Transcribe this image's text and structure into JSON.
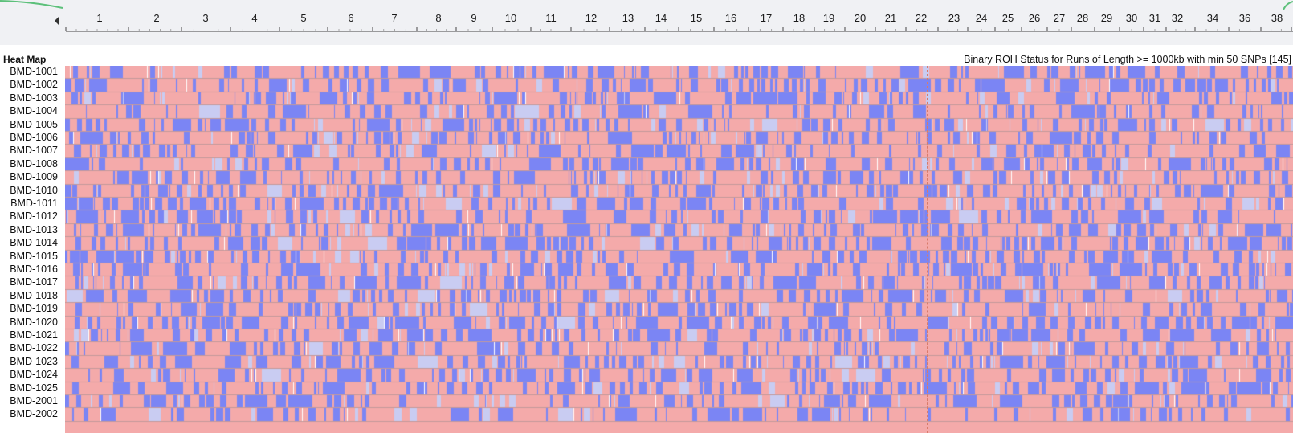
{
  "ruler": {
    "chromosomes": [
      "1",
      "2",
      "3",
      "4",
      "5",
      "6",
      "7",
      "8",
      "9",
      "10",
      "11",
      "12",
      "13",
      "14",
      "15",
      "16",
      "17",
      "18",
      "19",
      "20",
      "21",
      "22",
      "23",
      "24",
      "25",
      "26",
      "27",
      "28",
      "29",
      "30",
      "31",
      "32",
      "34",
      "36",
      "38"
    ],
    "scroll_left_icon": "triangle-left-icon"
  },
  "heatmap": {
    "title": "Heat Map",
    "caption": "Binary ROH Status for Runs of Length >= 1000kb with min 50 SNPs [145]",
    "samples": [
      "BMD-1001",
      "BMD-1002",
      "BMD-1003",
      "BMD-1004",
      "BMD-1005",
      "BMD-1006",
      "BMD-1007",
      "BMD-1008",
      "BMD-1009",
      "BMD-1010",
      "BMD-1011",
      "BMD-1012",
      "BMD-1013",
      "BMD-1014",
      "BMD-1015",
      "BMD-1016",
      "BMD-1017",
      "BMD-1018",
      "BMD-1019",
      "BMD-1020",
      "BMD-1021",
      "BMD-1022",
      "BMD-1023",
      "BMD-1024",
      "BMD-1025",
      "BMD-2001",
      "BMD-2002"
    ],
    "colors": {
      "roh_present": "#7b85f4",
      "roh_absent": "#f4aaaa",
      "partial": "#c9ccf2",
      "white": "#ffffff",
      "row_separator": "#9a8a8e",
      "ruler_accent": "#5cc07a",
      "marker_line": "#d97b6a"
    }
  }
}
